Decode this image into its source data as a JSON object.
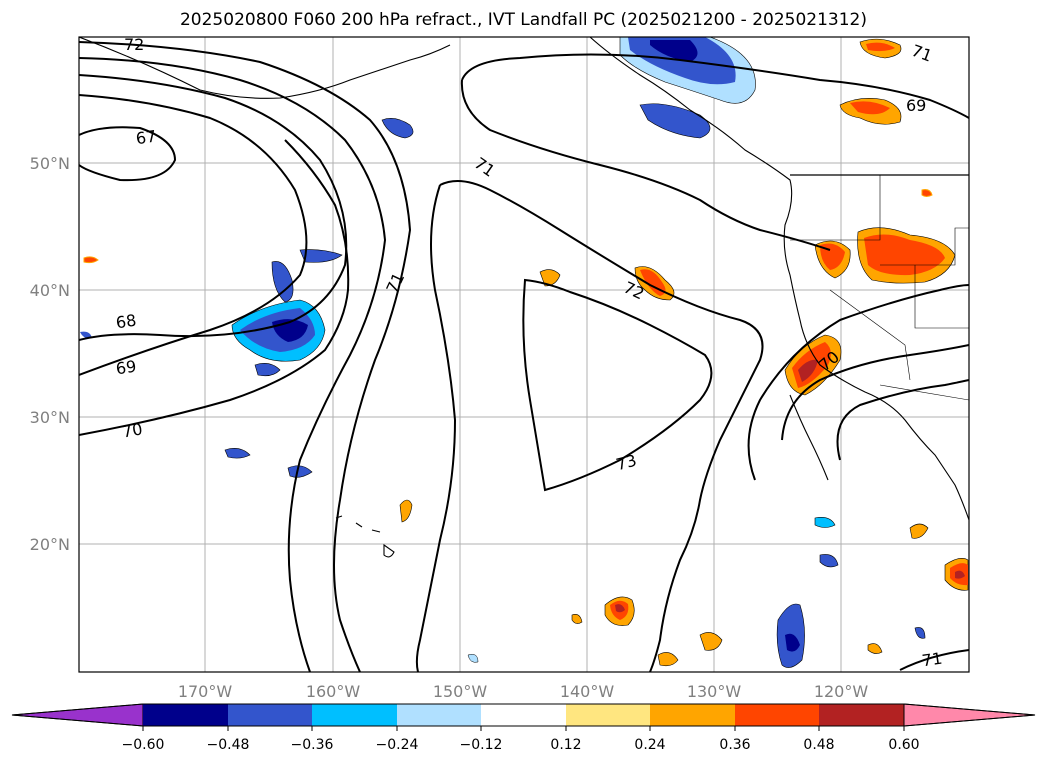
{
  "title": "2025020800 F060 200 hPa refract., IVT Landfall PC (2025021200 - 2025021312)",
  "map": {
    "lat_labels": [
      "50°N",
      "40°N",
      "30°N",
      "20°N"
    ],
    "lon_labels": [
      "170°W",
      "160°W",
      "150°W",
      "140°W",
      "130°W",
      "120°W"
    ],
    "contour_labels": [
      "72",
      "71",
      "69",
      "67",
      "71",
      "71",
      "68",
      "69",
      "70",
      "72",
      "70",
      "73",
      "71"
    ]
  },
  "colorbar": {
    "ticks": [
      "−0.60",
      "−0.48",
      "−0.36",
      "−0.24",
      "−0.12",
      "0.12",
      "0.24",
      "0.36",
      "0.48",
      "0.60"
    ],
    "colors": {
      "under": "#9932cc",
      "c1": "#00008b",
      "c2": "#3355cc",
      "c3": "#00bfff",
      "c4": "#b0e0ff",
      "c5": "#ffffff",
      "c6": "#ffe680",
      "c7": "#ffa500",
      "c8": "#ff4500",
      "c9": "#b22222",
      "over": "#ff88aa"
    }
  }
}
